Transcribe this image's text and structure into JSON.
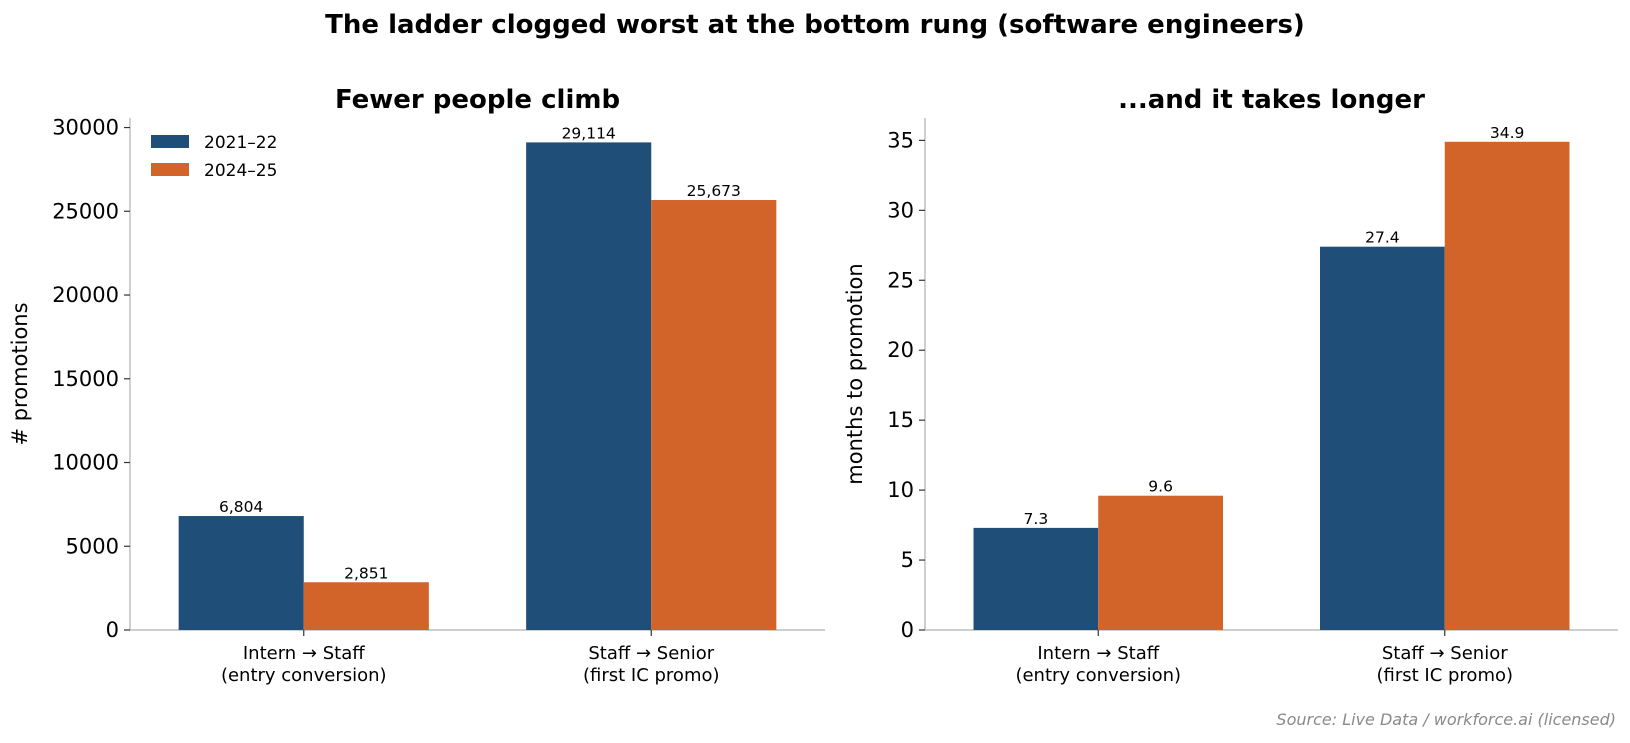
{
  "suptitle": "The ladder clogged worst at the bottom rung (software engineers)",
  "source": "Source: Live Data / workforce.ai (licensed)",
  "colors": {
    "series1": "#1f4e79",
    "series2": "#d2642a"
  },
  "chart_data": [
    {
      "type": "bar",
      "title": "Fewer people climb",
      "ylabel": "# promotions",
      "xlabel": "",
      "categories": [
        "Intern → Staff\n(entry conversion)",
        "Staff → Senior\n(first IC promo)"
      ],
      "series": [
        {
          "name": "2021–22",
          "values": [
            6804,
            29114
          ],
          "labels": [
            "6,804",
            "29,114"
          ]
        },
        {
          "name": "2024–25",
          "values": [
            2851,
            25673
          ],
          "labels": [
            "2,851",
            "25,673"
          ]
        }
      ],
      "ylim": [
        0,
        30570
      ],
      "yticks": [
        0,
        5000,
        10000,
        15000,
        20000,
        25000,
        30000
      ],
      "legend": "top-left",
      "grid": false
    },
    {
      "type": "bar",
      "title": "...and it takes longer",
      "ylabel": "months to promotion",
      "xlabel": "",
      "categories": [
        "Intern → Staff\n(entry conversion)",
        "Staff → Senior\n(first IC promo)"
      ],
      "series": [
        {
          "name": "2021–22",
          "values": [
            7.3,
            27.4
          ],
          "labels": [
            "7.3",
            "27.4"
          ]
        },
        {
          "name": "2024–25",
          "values": [
            9.6,
            34.9
          ],
          "labels": [
            "9.6",
            "34.9"
          ]
        }
      ],
      "ylim": [
        0,
        36.6
      ],
      "yticks": [
        0,
        5,
        10,
        15,
        20,
        25,
        30,
        35
      ],
      "legend": "none",
      "grid": false
    }
  ]
}
